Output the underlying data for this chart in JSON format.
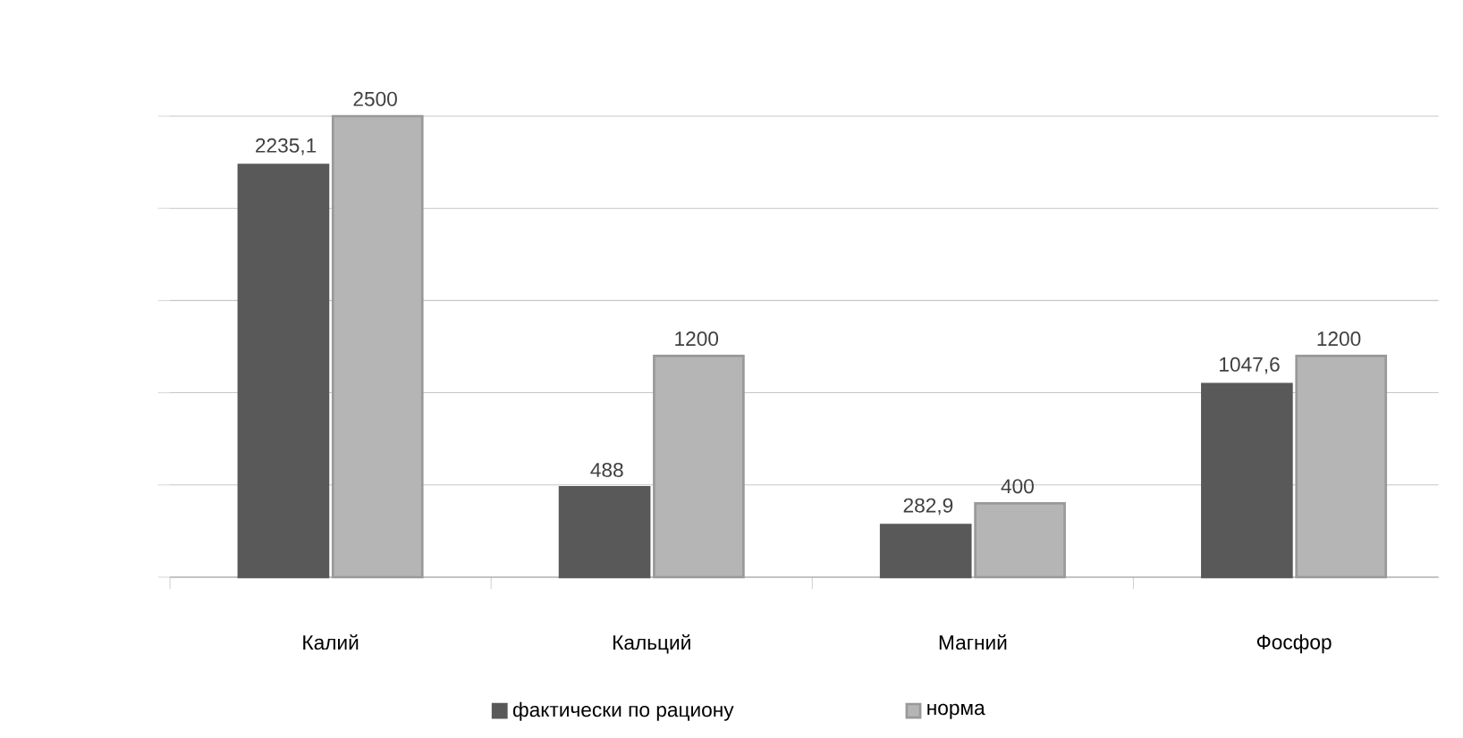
{
  "chart_data": {
    "type": "bar",
    "categories": [
      "Калий",
      "Кальций",
      "Магний",
      "Фосфор"
    ],
    "series": [
      {
        "name": "фактически по рациону",
        "color": "#595959",
        "values": [
          2235.1,
          488,
          282.9,
          1047.6
        ],
        "value_labels": [
          "2235,1",
          "488",
          "282,9",
          "1047,6"
        ]
      },
      {
        "name": "норма",
        "color": "#b5b5b5",
        "values": [
          2500,
          1200,
          400,
          1200
        ],
        "value_labels": [
          "2500",
          "1200",
          "400",
          "1200"
        ]
      }
    ],
    "ylim": [
      0,
      2500
    ],
    "yticks": [
      {
        "value": 0,
        "label": null
      },
      {
        "value": 500,
        "label": null
      },
      {
        "value": 1000,
        "label": null
      },
      {
        "value": 1500,
        "label": null
      },
      {
        "value": 2000,
        "label": null
      },
      {
        "value": 2500,
        "label": null
      }
    ],
    "tick_labels": "x",
    "grid": "y",
    "legend": "bottom"
  }
}
